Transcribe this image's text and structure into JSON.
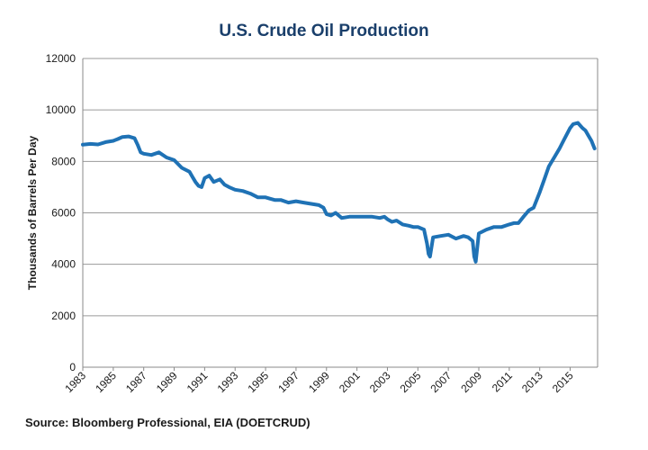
{
  "chart_data": {
    "type": "line",
    "title": "U.S. Crude Oil Production",
    "ylabel": "Thousands of Barrels Per Day",
    "xlabel": "",
    "source": "Source: Bloomberg Professional, EIA (DOETCRUD)",
    "xlim": [
      1983,
      2016.8
    ],
    "ylim": [
      0,
      12000
    ],
    "yticks": [
      0,
      2000,
      4000,
      6000,
      8000,
      10000,
      12000
    ],
    "xticks": [
      1983,
      1985,
      1987,
      1989,
      1991,
      1993,
      1995,
      1997,
      1999,
      2001,
      2003,
      2005,
      2007,
      2009,
      2011,
      2013,
      2015
    ],
    "grid": true,
    "color": "#1f72b5",
    "series": [
      {
        "x": [
          1983,
          1983.5,
          1984,
          1984.5,
          1985,
          1985.3,
          1985.6,
          1986,
          1986.4,
          1986.6,
          1986.8,
          1987,
          1987.5,
          1988,
          1988.5,
          1989,
          1989.5,
          1990,
          1990.2,
          1990.4,
          1990.6,
          1990.8,
          1991,
          1991.3,
          1991.6,
          1992,
          1992.3,
          1992.6,
          1993,
          1993.5,
          1994,
          1994.5,
          1995,
          1995.3,
          1995.6,
          1996,
          1996.5,
          1997,
          1997.5,
          1998,
          1998.5,
          1998.8,
          1999,
          1999.3,
          1999.6,
          2000,
          2000.5,
          2001,
          2001.5,
          2002,
          2002.5,
          2002.8,
          2003,
          2003.3,
          2003.6,
          2004,
          2004.4,
          2004.7,
          2005,
          2005.4,
          2005.6,
          2005.7,
          2005.8,
          2006,
          2006.5,
          2007,
          2007.5,
          2008,
          2008.3,
          2008.6,
          2008.7,
          2008.8,
          2009,
          2009.5,
          2010,
          2010.5,
          2011,
          2011.3,
          2011.6,
          2012,
          2012.3,
          2012.6,
          2013,
          2013.3,
          2013.6,
          2014,
          2014.3,
          2014.6,
          2015,
          2015.2,
          2015.5,
          2015.8,
          2016,
          2016.2,
          2016.4,
          2016.6
        ],
        "values": [
          8650,
          8680,
          8660,
          8750,
          8800,
          8870,
          8950,
          8970,
          8900,
          8650,
          8350,
          8300,
          8250,
          8350,
          8150,
          8050,
          7750,
          7600,
          7400,
          7200,
          7050,
          7000,
          7350,
          7450,
          7200,
          7300,
          7100,
          7000,
          6900,
          6850,
          6750,
          6600,
          6600,
          6550,
          6500,
          6500,
          6400,
          6450,
          6400,
          6350,
          6300,
          6200,
          5950,
          5900,
          6000,
          5800,
          5850,
          5850,
          5850,
          5850,
          5800,
          5850,
          5750,
          5650,
          5700,
          5550,
          5500,
          5450,
          5450,
          5350,
          4800,
          4400,
          4300,
          5050,
          5100,
          5150,
          5000,
          5100,
          5050,
          4900,
          4300,
          4100,
          5200,
          5350,
          5450,
          5450,
          5550,
          5600,
          5600,
          5900,
          6100,
          6200,
          6800,
          7300,
          7800,
          8200,
          8500,
          8850,
          9300,
          9450,
          9500,
          9300,
          9200,
          9000,
          8800,
          8500
        ]
      }
    ]
  }
}
